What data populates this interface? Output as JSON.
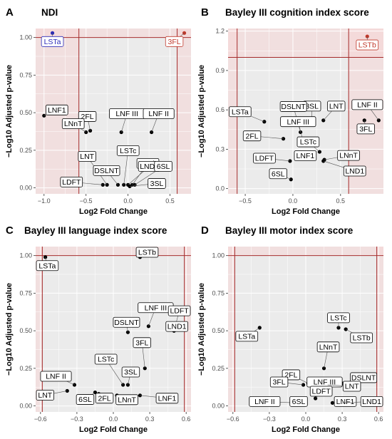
{
  "chart_data": [
    {
      "type": "scatter",
      "panel": "A",
      "title": "NDI",
      "xlabel": "Log2 Fold Change",
      "ylabel": "−Log10 Adjusted p-value",
      "xlim": [
        -1.1,
        0.75
      ],
      "ylim": [
        -0.04,
        1.06
      ],
      "xticks": [
        -1.0,
        -0.5,
        0.0,
        0.5
      ],
      "xtick_labels": [
        "−1.0",
        "−0.5",
        "0.0",
        "0.5"
      ],
      "yticks": [
        0.0,
        0.25,
        0.5,
        0.75,
        1.0
      ],
      "ytick_labels": [
        "0.00",
        "0.25",
        "0.50",
        "0.75",
        "1.00"
      ],
      "hline": 1.0,
      "vlines": [
        -0.585,
        0.585
      ],
      "grid": true,
      "points": [
        {
          "label": "LSTa",
          "x": -0.9,
          "y": 1.03,
          "color": "#2a2ab8",
          "box": true
        },
        {
          "label": "3FL",
          "x": 0.67,
          "y": 1.03,
          "color": "#c0392b",
          "box": true
        },
        {
          "label": "LNF1",
          "x": -1.0,
          "y": 0.48,
          "color": "#000000",
          "box": true
        },
        {
          "label": "2FL",
          "x": -0.45,
          "y": 0.38,
          "color": "#000000",
          "box": true
        },
        {
          "label": "LNnT",
          "x": -0.5,
          "y": 0.37,
          "color": "#000000",
          "box": true
        },
        {
          "label": "LNF III",
          "x": -0.08,
          "y": 0.37,
          "color": "#000000",
          "box": true
        },
        {
          "label": "LNF II",
          "x": 0.28,
          "y": 0.37,
          "color": "#000000",
          "box": true
        },
        {
          "label": "LNT",
          "x": -0.25,
          "y": 0.02,
          "color": "#000000",
          "box": true
        },
        {
          "label": "LSTc",
          "x": -0.05,
          "y": 0.02,
          "color": "#000000",
          "box": true
        },
        {
          "label": "LSTb",
          "x": 0.05,
          "y": 0.02,
          "color": "#000000",
          "box": true
        },
        {
          "label": "DSLNT",
          "x": -0.12,
          "y": 0.02,
          "color": "#000000",
          "box": true
        },
        {
          "label": "LND1",
          "x": 0.0,
          "y": 0.02,
          "color": "#000000",
          "box": true
        },
        {
          "label": "6SL",
          "x": 0.08,
          "y": 0.02,
          "color": "#000000",
          "box": true
        },
        {
          "label": "LDFT",
          "x": -0.3,
          "y": 0.02,
          "color": "#000000",
          "box": true
        },
        {
          "label": "3SL",
          "x": 0.02,
          "y": 0.01,
          "color": "#000000",
          "box": true
        }
      ]
    },
    {
      "type": "scatter",
      "panel": "B",
      "title": "Bayley III cognition index score",
      "xlabel": "Log2 Fold Change",
      "ylabel": "−Log10 Adjusted p-value",
      "xlim": [
        -0.68,
        0.95
      ],
      "ylim": [
        -0.04,
        1.22
      ],
      "xticks": [
        -0.5,
        0.0,
        0.5
      ],
      "xtick_labels": [
        "−0.5",
        "0.0",
        "0.5"
      ],
      "yticks": [
        0.0,
        0.3,
        0.6,
        0.9,
        1.2
      ],
      "ytick_labels": [
        "0.0",
        "0.3",
        "0.6",
        "0.9",
        "1.2"
      ],
      "hline": 1.0,
      "vlines": [
        -0.585,
        0.585
      ],
      "grid": true,
      "points": [
        {
          "label": "LSTb",
          "x": 0.78,
          "y": 1.16,
          "color": "#c0392b",
          "box": true
        },
        {
          "label": "3SL",
          "x": 0.2,
          "y": 0.52,
          "color": "#000000",
          "box": true
        },
        {
          "label": "LNT",
          "x": 0.32,
          "y": 0.52,
          "color": "#000000",
          "box": true
        },
        {
          "label": "LNF II",
          "x": 0.9,
          "y": 0.52,
          "color": "#000000",
          "box": true
        },
        {
          "label": "3FL",
          "x": 0.75,
          "y": 0.52,
          "color": "#000000",
          "box": true
        },
        {
          "label": "LSTa",
          "x": -0.3,
          "y": 0.51,
          "color": "#000000",
          "box": true
        },
        {
          "label": "DSLNT",
          "x": 0.08,
          "y": 0.43,
          "color": "#000000",
          "box": true
        },
        {
          "label": "LNF III",
          "x": 0.1,
          "y": 0.38,
          "color": "#000000",
          "box": true
        },
        {
          "label": "2FL",
          "x": -0.1,
          "y": 0.38,
          "color": "#000000",
          "box": true
        },
        {
          "label": "LSTc",
          "x": 0.28,
          "y": 0.28,
          "color": "#000000",
          "box": true
        },
        {
          "label": "LNF1",
          "x": 0.22,
          "y": 0.25,
          "color": "#000000",
          "box": true
        },
        {
          "label": "LNnT",
          "x": 0.33,
          "y": 0.22,
          "color": "#000000",
          "box": true
        },
        {
          "label": "LDFT",
          "x": -0.03,
          "y": 0.21,
          "color": "#000000",
          "box": true
        },
        {
          "label": "LND1",
          "x": 0.32,
          "y": 0.21,
          "color": "#000000",
          "box": true
        },
        {
          "label": "6SL",
          "x": -0.02,
          "y": 0.07,
          "color": "#000000",
          "box": true
        }
      ]
    },
    {
      "type": "scatter",
      "panel": "C",
      "title": "Bayley III language index score",
      "xlabel": "Log2 Fold Change",
      "ylabel": "−Log10 Adjusted p-value",
      "xlim": [
        -0.64,
        0.64
      ],
      "ylim": [
        -0.04,
        1.06
      ],
      "xticks": [
        -0.6,
        -0.3,
        0.0,
        0.3,
        0.6
      ],
      "xtick_labels": [
        "−0.6",
        "−0.3",
        "0.0",
        "0.3",
        "0.6"
      ],
      "yticks": [
        0.0,
        0.25,
        0.5,
        0.75,
        1.0
      ],
      "ytick_labels": [
        "0.00",
        "0.25",
        "0.50",
        "0.75",
        "1.00"
      ],
      "hline": 1.0,
      "vlines": [
        -0.585,
        0.585
      ],
      "grid": true,
      "points": [
        {
          "label": "LSTa",
          "x": -0.56,
          "y": 0.99,
          "color": "#000000",
          "box": true
        },
        {
          "label": "LSTb",
          "x": 0.22,
          "y": 0.99,
          "color": "#000000",
          "box": true
        },
        {
          "label": "LNF III",
          "x": 0.29,
          "y": 0.53,
          "color": "#000000",
          "box": true
        },
        {
          "label": "LDFT",
          "x": 0.5,
          "y": 0.5,
          "color": "#000000",
          "box": true
        },
        {
          "label": "DSLNT",
          "x": 0.12,
          "y": 0.49,
          "color": "#000000",
          "box": true
        },
        {
          "label": "LND1",
          "x": 0.5,
          "y": 0.5,
          "color": "#000000",
          "box": true
        },
        {
          "label": "3FL",
          "x": 0.26,
          "y": 0.25,
          "color": "#000000",
          "box": true
        },
        {
          "label": "LSTc",
          "x": 0.08,
          "y": 0.14,
          "color": "#000000",
          "box": true
        },
        {
          "label": "3SL",
          "x": 0.12,
          "y": 0.14,
          "color": "#000000",
          "box": true
        },
        {
          "label": "LNF II",
          "x": -0.32,
          "y": 0.14,
          "color": "#000000",
          "box": true
        },
        {
          "label": "LNT",
          "x": -0.38,
          "y": 0.1,
          "color": "#000000",
          "box": true
        },
        {
          "label": "6SL",
          "x": -0.15,
          "y": 0.09,
          "color": "#000000",
          "box": true
        },
        {
          "label": "2FL",
          "x": -0.12,
          "y": 0.08,
          "color": "#000000",
          "box": true
        },
        {
          "label": "LNnT",
          "x": 0.03,
          "y": 0.07,
          "color": "#000000",
          "box": true
        },
        {
          "label": "LNF1",
          "x": 0.22,
          "y": 0.07,
          "color": "#000000",
          "box": true
        }
      ]
    },
    {
      "type": "scatter",
      "panel": "D",
      "title": "Bayley III motor index score",
      "xlabel": "Log2 Fold Change",
      "ylabel": "−Log10 Adjusted p-value",
      "xlim": [
        -0.64,
        0.64
      ],
      "ylim": [
        -0.04,
        1.06
      ],
      "xticks": [
        -0.6,
        -0.3,
        0.0,
        0.3,
        0.6
      ],
      "xtick_labels": [
        "−0.6",
        "−0.3",
        "0.0",
        "0.3",
        "0.6"
      ],
      "yticks": [
        0.0,
        0.25,
        0.5,
        0.75,
        1.0
      ],
      "ytick_labels": [
        "0.00",
        "0.25",
        "0.50",
        "0.75",
        "1.00"
      ],
      "hline": 1.0,
      "vlines": [
        -0.585,
        0.585
      ],
      "grid": true,
      "points": [
        {
          "label": "LSTc",
          "x": 0.27,
          "y": 0.52,
          "color": "#000000",
          "box": true
        },
        {
          "label": "LSTb",
          "x": 0.33,
          "y": 0.51,
          "color": "#000000",
          "box": true
        },
        {
          "label": "LSTa",
          "x": -0.38,
          "y": 0.52,
          "color": "#000000",
          "box": true
        },
        {
          "label": "LNnT",
          "x": 0.15,
          "y": 0.25,
          "color": "#000000",
          "box": true
        },
        {
          "label": "2FL",
          "x": 0.02,
          "y": 0.15,
          "color": "#000000",
          "box": true
        },
        {
          "label": "DSLNT",
          "x": 0.3,
          "y": 0.15,
          "color": "#000000",
          "box": true
        },
        {
          "label": "LNF III",
          "x": 0.12,
          "y": 0.14,
          "color": "#000000",
          "box": true
        },
        {
          "label": "LNT",
          "x": 0.18,
          "y": 0.14,
          "color": "#000000",
          "box": true
        },
        {
          "label": "3FL",
          "x": -0.02,
          "y": 0.14,
          "color": "#000000",
          "box": true
        },
        {
          "label": "LDFT",
          "x": 0.08,
          "y": 0.05,
          "color": "#000000",
          "box": true
        },
        {
          "label": "LNF II",
          "x": -0.08,
          "y": 0.02,
          "color": "#000000",
          "box": true
        },
        {
          "label": "6SL",
          "x": 0.0,
          "y": 0.02,
          "color": "#000000",
          "box": true
        },
        {
          "label": "LNF1",
          "x": 0.22,
          "y": 0.02,
          "color": "#000000",
          "box": true
        },
        {
          "label": "LND1",
          "x": 0.3,
          "y": 0.02,
          "color": "#000000",
          "box": true
        }
      ]
    }
  ]
}
